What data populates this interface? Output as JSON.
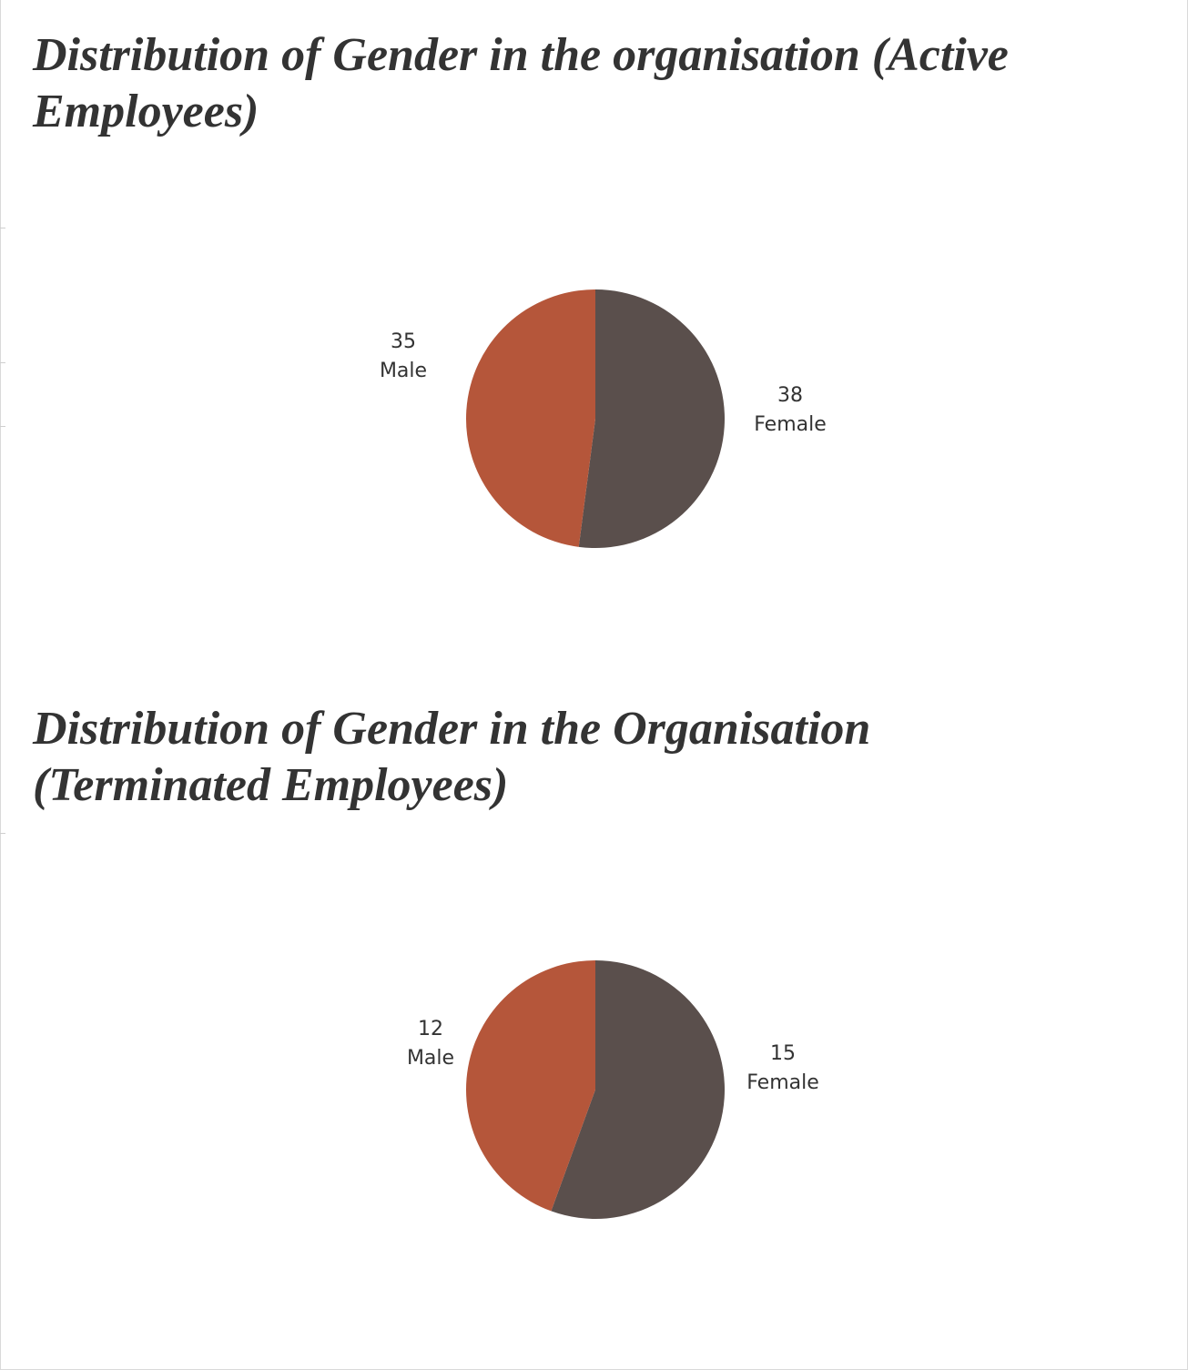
{
  "colors": {
    "male": "#b5563a",
    "female": "#5a4f4c",
    "title_text": "#333333",
    "label_text": "#333333"
  },
  "chart_data": [
    {
      "type": "pie",
      "title": "Distribution of Gender in the organisation (Active Employees)",
      "slices": [
        {
          "label": "Female",
          "value": 38
        },
        {
          "label": "Male",
          "value": 35
        }
      ],
      "start": "12 o'clock",
      "direction": "clockwise",
      "legend": "none",
      "data_labels": "value and category outside slice"
    },
    {
      "type": "pie",
      "title": "Distribution of Gender in the Organisation (Terminated Employees)",
      "slices": [
        {
          "label": "Female",
          "value": 15
        },
        {
          "label": "Male",
          "value": 12
        }
      ],
      "start": "12 o'clock",
      "direction": "clockwise",
      "legend": "none",
      "data_labels": "value and category outside slice"
    }
  ]
}
